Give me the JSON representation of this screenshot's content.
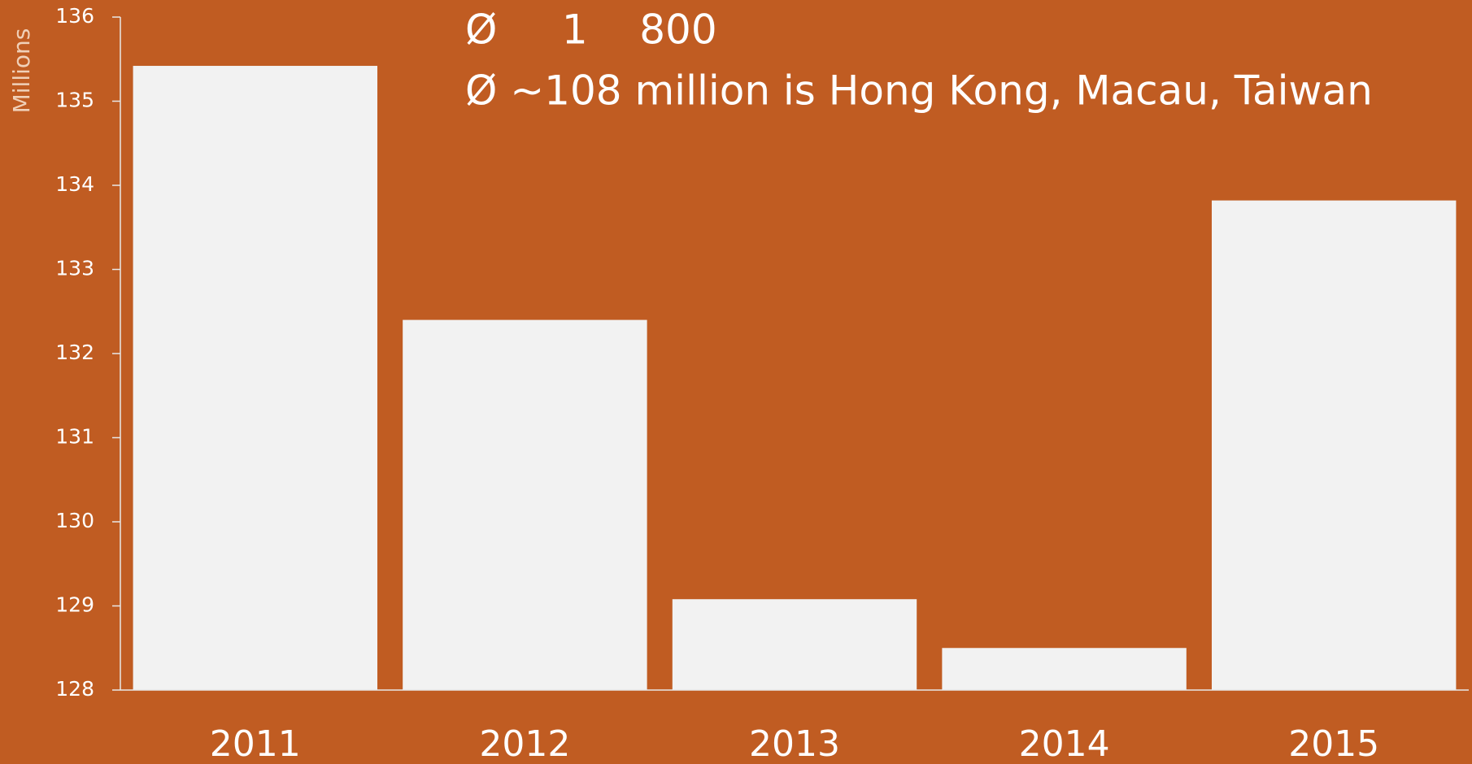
{
  "chart_data": {
    "type": "bar",
    "y_axis_label": "Millions",
    "annotations": [
      "Ø     1    800",
      "Ø ~108 million is Hong Kong, Macau, Taiwan"
    ],
    "categories": [
      "2011",
      "2012",
      "2013",
      "2014",
      "2015"
    ],
    "values": [
      135.42,
      132.4,
      129.08,
      128.5,
      133.82
    ],
    "color": "#f2f2f2",
    "ylim": [
      128,
      136
    ],
    "yticks": [
      128,
      129,
      130,
      131,
      132,
      133,
      134,
      135,
      136
    ],
    "grid": false
  }
}
